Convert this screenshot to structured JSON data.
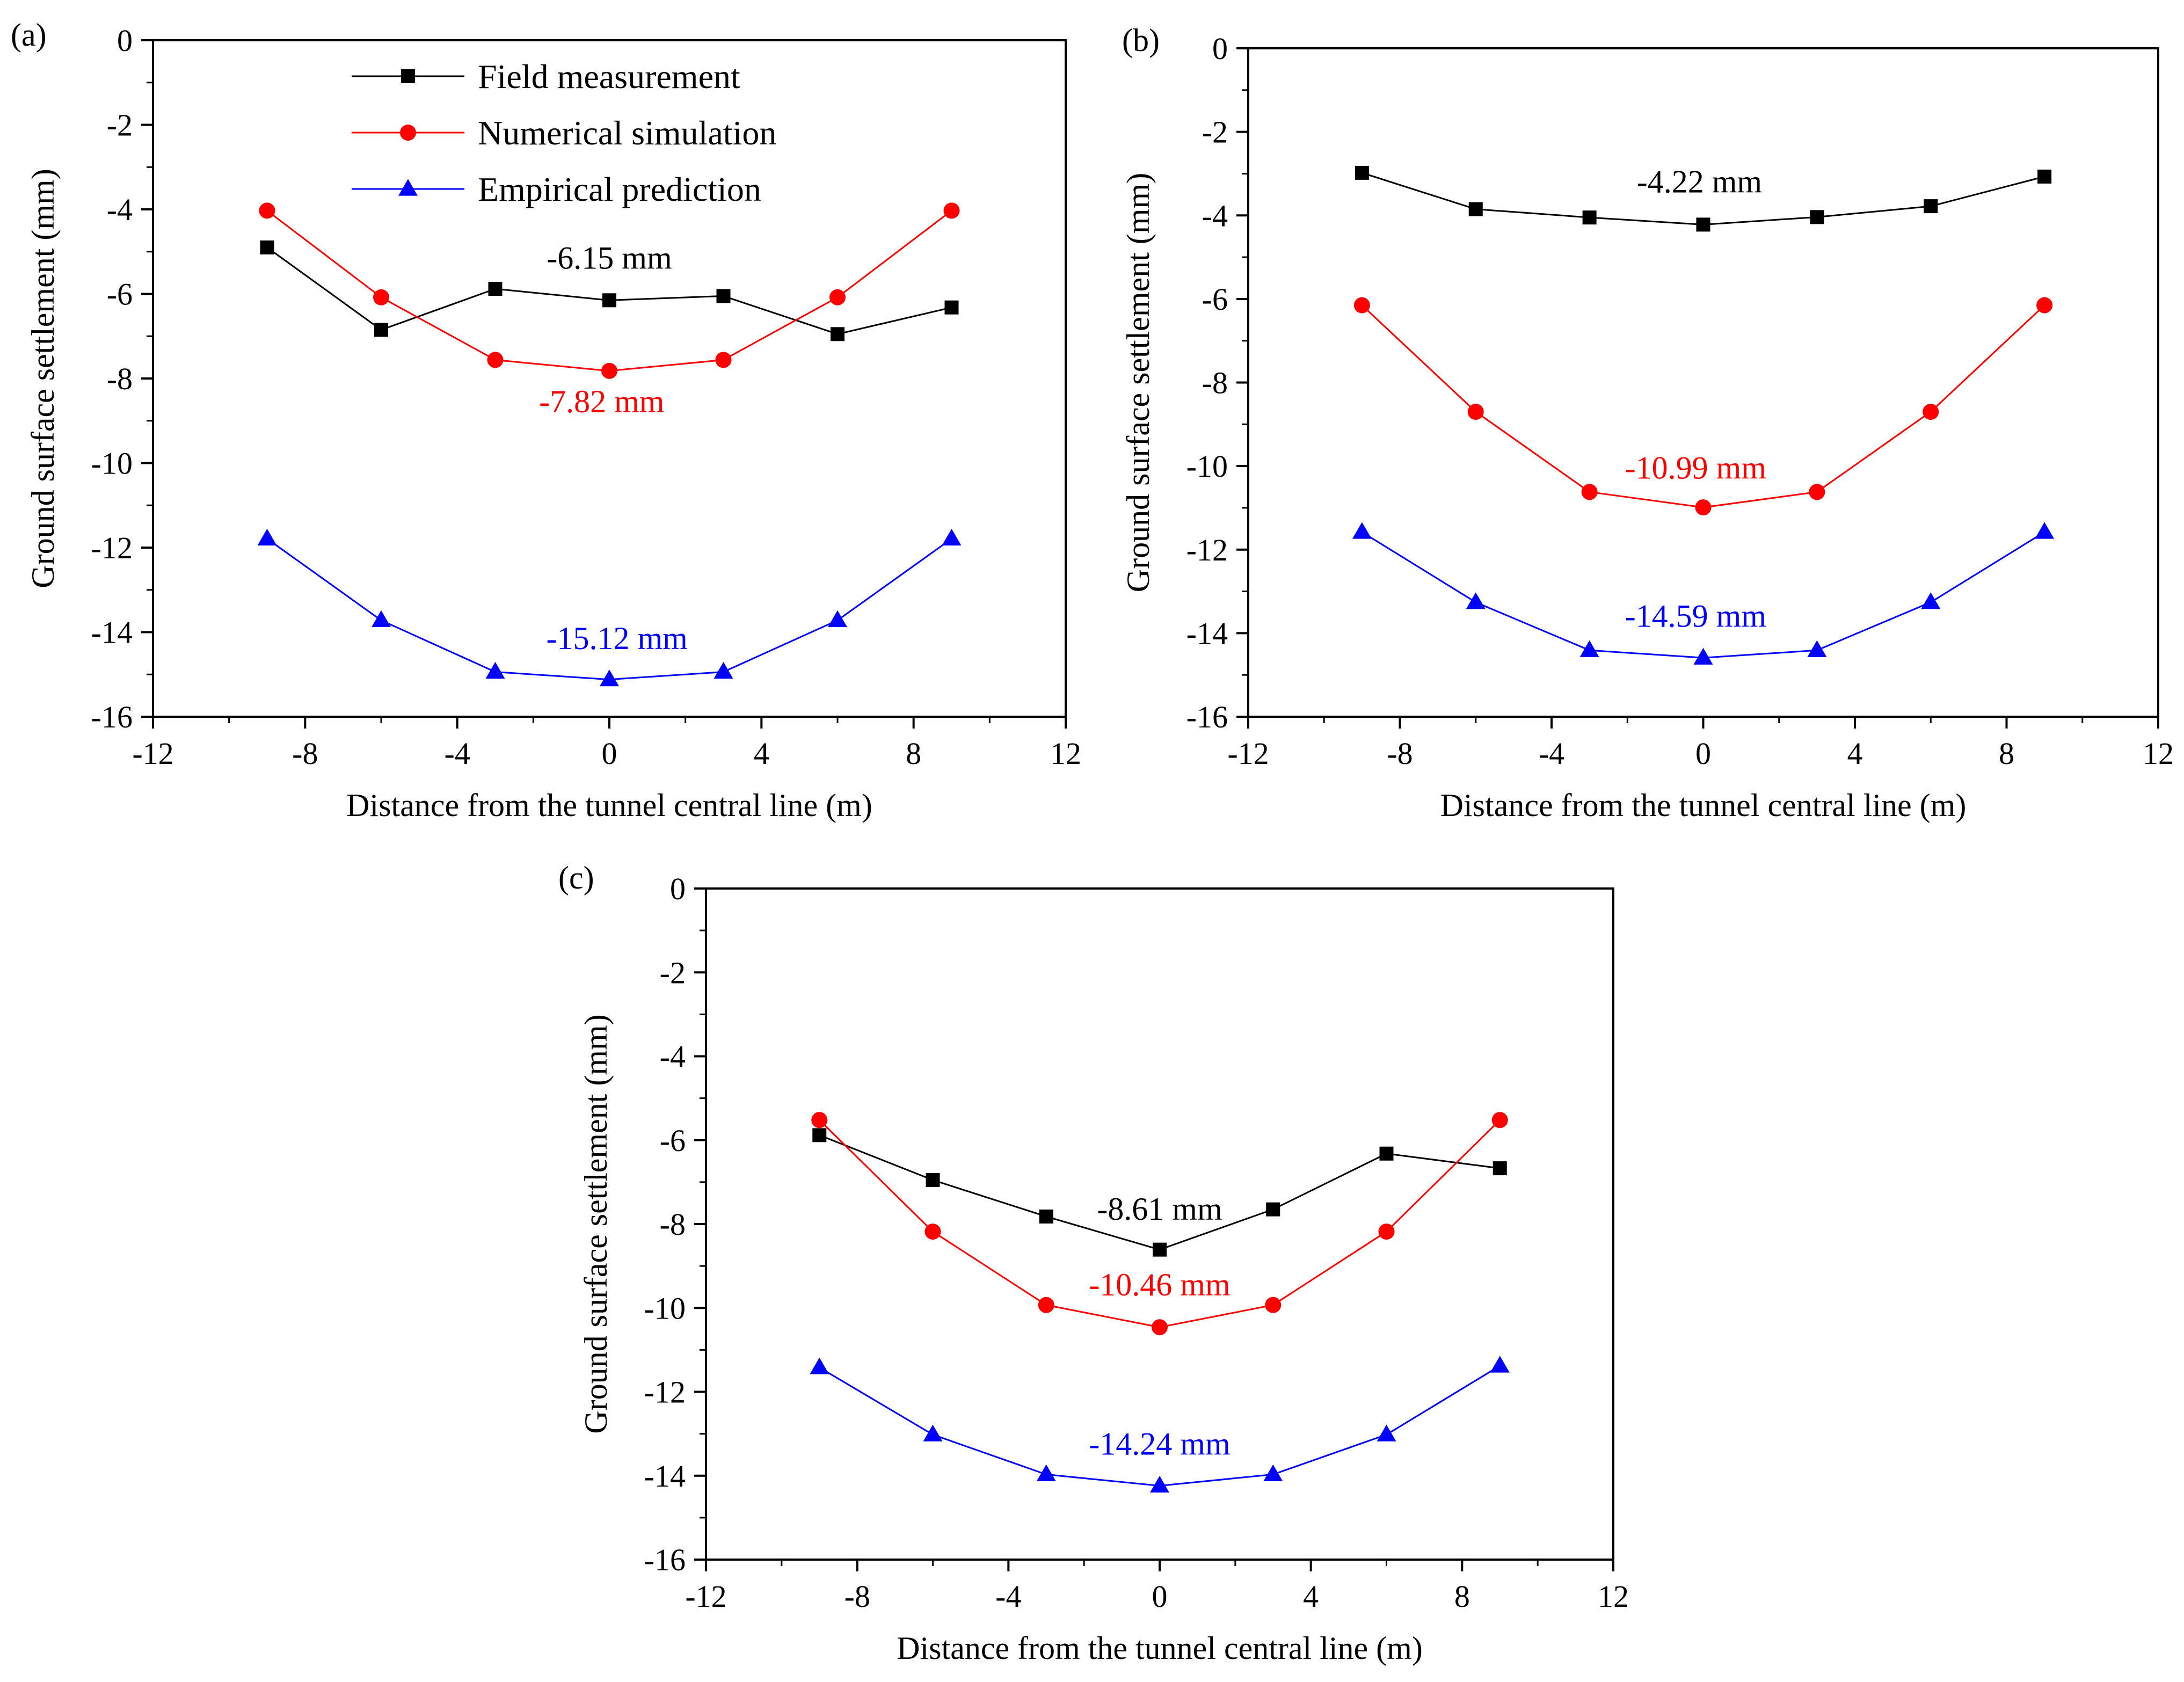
{
  "legend": [
    {
      "name": "Field measurement",
      "color": "#000000",
      "marker": "square"
    },
    {
      "name": "Numerical simulation",
      "color": "#ff0000",
      "marker": "circle"
    },
    {
      "name": "Empirical prediction",
      "color": "#0000ff",
      "marker": "triangle"
    }
  ],
  "chart_data": [
    {
      "panel_label": "(a)",
      "type": "line",
      "xlabel": "Distance from the tunnel central line (m)",
      "ylabel": "Ground surface settlement (mm)",
      "xlim": [
        -12,
        12
      ],
      "ylim": [
        -16,
        0
      ],
      "xticks": [
        -12,
        -8,
        -4,
        0,
        4,
        8,
        12
      ],
      "yticks": [
        0,
        -2,
        -4,
        -6,
        -8,
        -10,
        -12,
        -14,
        -16
      ],
      "x": [
        -9,
        -6,
        -3,
        0,
        3,
        6,
        9
      ],
      "series": [
        {
          "name": "Field measurement",
          "color": "#000000",
          "marker": "square",
          "values": [
            -4.9,
            -6.85,
            -5.88,
            -6.15,
            -6.05,
            -6.95,
            -6.32
          ]
        },
        {
          "name": "Numerical simulation",
          "color": "#ff0000",
          "marker": "circle",
          "values": [
            -4.03,
            -6.08,
            -7.56,
            -7.82,
            -7.56,
            -6.08,
            -4.03
          ]
        },
        {
          "name": "Empirical prediction",
          "color": "#0000ff",
          "marker": "triangle",
          "values": [
            -11.79,
            -13.72,
            -14.94,
            -15.12,
            -14.94,
            -13.72,
            -11.79
          ]
        }
      ],
      "annotations": [
        {
          "text": "-6.15 mm",
          "x": 0,
          "y": -5.4,
          "color": "#000000"
        },
        {
          "text": "-7.82 mm",
          "x": -0.2,
          "y": -8.8,
          "color": "#ff0000"
        },
        {
          "text": "-15.12 mm",
          "x": 0.2,
          "y": -14.4,
          "color": "#0000ff"
        }
      ],
      "legend_position": "top-center"
    },
    {
      "panel_label": "(b)",
      "type": "line",
      "xlabel": "Distance from the tunnel central line (m)",
      "ylabel": "Ground surface settlement (mm)",
      "xlim": [
        -12,
        12
      ],
      "ylim": [
        -16,
        0
      ],
      "xticks": [
        -12,
        -8,
        -4,
        0,
        4,
        8,
        12
      ],
      "yticks": [
        0,
        -2,
        -4,
        -6,
        -8,
        -10,
        -12,
        -14,
        -16
      ],
      "x": [
        -9,
        -6,
        -3,
        0,
        3,
        6,
        9
      ],
      "series": [
        {
          "name": "Field measurement",
          "color": "#000000",
          "marker": "square",
          "values": [
            -2.98,
            -3.85,
            -4.05,
            -4.22,
            -4.04,
            -3.78,
            -3.07
          ]
        },
        {
          "name": "Numerical simulation",
          "color": "#ff0000",
          "marker": "circle",
          "values": [
            -6.15,
            -8.7,
            -10.62,
            -10.99,
            -10.62,
            -8.7,
            -6.15
          ]
        },
        {
          "name": "Empirical prediction",
          "color": "#0000ff",
          "marker": "triangle",
          "values": [
            -11.58,
            -13.26,
            -14.41,
            -14.59,
            -14.41,
            -13.26,
            -11.58
          ]
        }
      ],
      "annotations": [
        {
          "text": "-4.22 mm",
          "x": -0.1,
          "y": -3.45,
          "color": "#000000"
        },
        {
          "text": "-10.99 mm",
          "x": -0.2,
          "y": -10.3,
          "color": "#ff0000"
        },
        {
          "text": "-14.59 mm",
          "x": -0.2,
          "y": -13.85,
          "color": "#0000ff"
        }
      ]
    },
    {
      "panel_label": "(c)",
      "type": "line",
      "xlabel": "Distance from the tunnel central line (m)",
      "ylabel": "Ground surface settlement (mm)",
      "xlim": [
        -12,
        12
      ],
      "ylim": [
        -16,
        0
      ],
      "xticks": [
        -12,
        -8,
        -4,
        0,
        4,
        8,
        12
      ],
      "yticks": [
        0,
        -2,
        -4,
        -6,
        -8,
        -10,
        -12,
        -14,
        -16
      ],
      "x": [
        -9,
        -6,
        -3,
        0,
        3,
        6,
        9
      ],
      "series": [
        {
          "name": "Field measurement",
          "color": "#000000",
          "marker": "square",
          "values": [
            -5.88,
            -6.95,
            -7.82,
            -8.61,
            -7.65,
            -6.32,
            -6.67
          ]
        },
        {
          "name": "Numerical simulation",
          "color": "#ff0000",
          "marker": "circle",
          "values": [
            -5.52,
            -8.18,
            -9.93,
            -10.46,
            -9.93,
            -8.18,
            -5.52
          ]
        },
        {
          "name": "Empirical prediction",
          "color": "#0000ff",
          "marker": "triangle",
          "values": [
            -11.42,
            -13.02,
            -13.97,
            -14.24,
            -13.97,
            -13.02,
            -11.38
          ]
        }
      ],
      "annotations": [
        {
          "text": "-8.61 mm",
          "x": 0,
          "y": -7.9,
          "color": "#000000"
        },
        {
          "text": "-10.46 mm",
          "x": 0,
          "y": -9.7,
          "color": "#ff0000"
        },
        {
          "text": "-14.24 mm",
          "x": 0,
          "y": -13.5,
          "color": "#0000ff"
        }
      ]
    }
  ]
}
